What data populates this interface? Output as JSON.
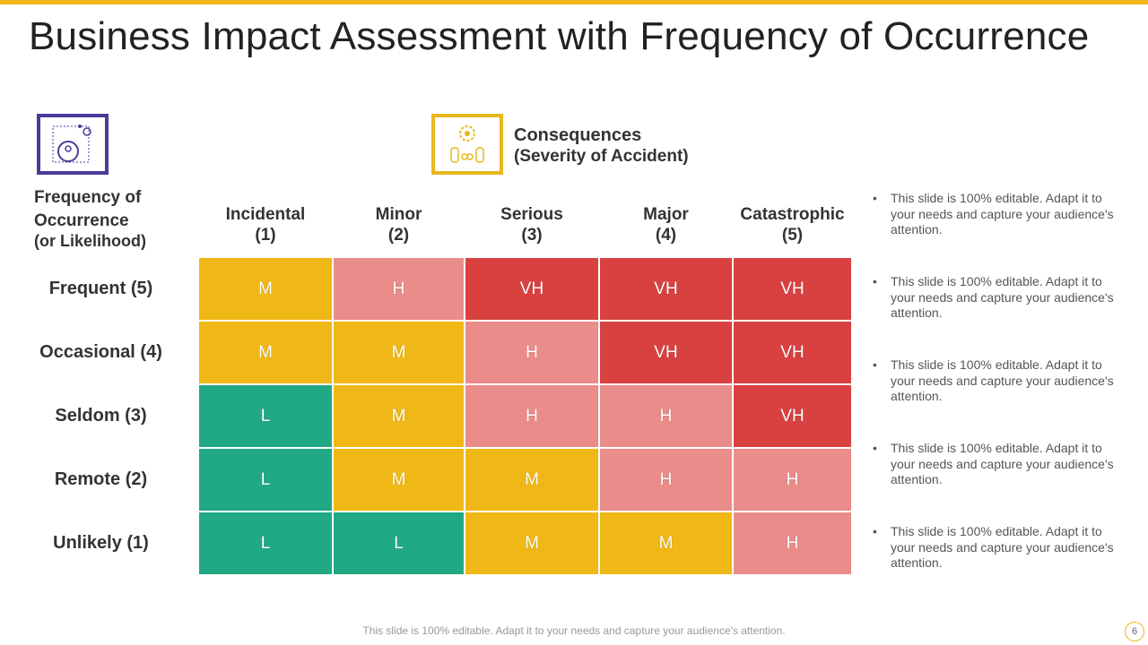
{
  "header": {
    "title": "Business Impact Assessment with Frequency of Occurrence"
  },
  "consequences": {
    "title": "Consequences",
    "subtitle": "(Severity of Accident)"
  },
  "frequency": {
    "title": "Frequency of Occurrence",
    "subtitle": "(or Likelihood)"
  },
  "table": {
    "columns": [
      {
        "name": "Incidental",
        "number": "(1)"
      },
      {
        "name": "Minor",
        "number": "(2)"
      },
      {
        "name": "Serious",
        "number": "(3)"
      },
      {
        "name": "Major",
        "number": "(4)"
      },
      {
        "name": "Catastrophic",
        "number": "(5)"
      }
    ],
    "rows": [
      {
        "label": "Frequent (5)",
        "cells": [
          "M",
          "H",
          "VH",
          "VH",
          "VH"
        ]
      },
      {
        "label": "Occasional (4)",
        "cells": [
          "M",
          "M",
          "H",
          "VH",
          "VH"
        ]
      },
      {
        "label": "Seldom (3)",
        "cells": [
          "L",
          "M",
          "H",
          "H",
          "VH"
        ]
      },
      {
        "label": "Remote (2)",
        "cells": [
          "L",
          "M",
          "M",
          "H",
          "H"
        ]
      },
      {
        "label": "Unlikely (1)",
        "cells": [
          "L",
          "L",
          "M",
          "M",
          "H"
        ]
      }
    ],
    "colors": {
      "L": "#21a985",
      "M": "#f0b816",
      "H": "#e98c8a",
      "VH": "#d94141"
    }
  },
  "notes": [
    "This slide is 100% editable. Adapt it to your needs and capture your audience's attention.",
    "This slide is 100% editable. Adapt it to your needs and capture your audience's attention.",
    "This slide is 100% editable. Adapt it to your needs and capture your audience's attention.",
    "This slide is 100% editable. Adapt it to your needs and capture your audience's attention.",
    "This slide is 100% editable. Adapt it to your needs and capture your audience's attention."
  ],
  "footer": {
    "text": "This slide is 100% editable. Adapt it to your needs and capture your audience's attention.",
    "page": "6"
  }
}
